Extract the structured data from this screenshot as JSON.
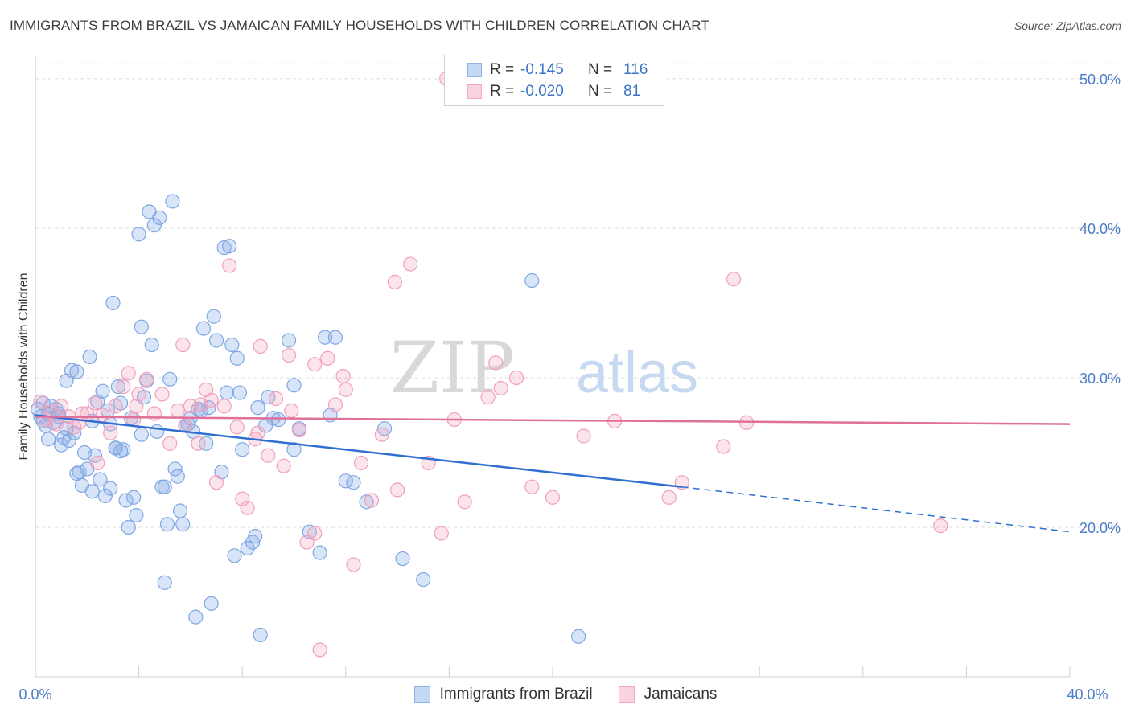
{
  "title": "IMMIGRANTS FROM BRAZIL VS JAMAICAN FAMILY HOUSEHOLDS WITH CHILDREN CORRELATION CHART",
  "source": "Source: ZipAtlas.com",
  "watermark": {
    "zip": "ZIP",
    "atlas": "atlas"
  },
  "legend_stats": [
    {
      "r_label": "R =",
      "r_value": "-0.145",
      "n_label": "N =",
      "n_value": "116",
      "color": "#8fb3e8"
    },
    {
      "r_label": "R =",
      "r_value": "-0.020",
      "n_label": "N =",
      "n_value": "81",
      "color": "#f3a7c0"
    }
  ],
  "chart_data": {
    "type": "scatter",
    "title": "IMMIGRANTS FROM BRAZIL VS JAMAICAN FAMILY HOUSEHOLDS WITH CHILDREN CORRELATION CHART",
    "xlabel": "",
    "ylabel": "Family Households with Children",
    "xlim": [
      0,
      40
    ],
    "ylim": [
      10,
      51.5
    ],
    "x_tick_labels": [
      "0.0%",
      "40.0%"
    ],
    "y_ticks": [
      20,
      30,
      40,
      50
    ],
    "y_tick_labels": [
      "20.0%",
      "30.0%",
      "40.0%",
      "50.0%"
    ],
    "grid": "horizontal dashed",
    "legend_position": "bottom",
    "series": [
      {
        "name": "Immigrants from Brazil",
        "color": "#8fb3e8",
        "trend": {
          "x0": 0,
          "y0": 27.5,
          "x1": 25,
          "y1": 22.7,
          "dash_to_x": 40,
          "dash_to_y": 19.7,
          "color": "#2e6fd1"
        },
        "points": [
          [
            0.1,
            27.9
          ],
          [
            0.2,
            27.4
          ],
          [
            0.3,
            28.3
          ],
          [
            0.3,
            27.1
          ],
          [
            0.4,
            26.8
          ],
          [
            0.5,
            27.6
          ],
          [
            0.6,
            28.1
          ],
          [
            0.7,
            27.0
          ],
          [
            0.8,
            27.9
          ],
          [
            0.9,
            27.4
          ],
          [
            1.0,
            25.5
          ],
          [
            1.1,
            26.0
          ],
          [
            1.2,
            29.8
          ],
          [
            1.3,
            25.8
          ],
          [
            1.4,
            30.5
          ],
          [
            1.5,
            26.3
          ],
          [
            1.6,
            30.4
          ],
          [
            1.7,
            23.7
          ],
          [
            1.8,
            22.8
          ],
          [
            1.9,
            25.0
          ],
          [
            2.0,
            23.9
          ],
          [
            2.1,
            31.4
          ],
          [
            2.2,
            27.1
          ],
          [
            2.3,
            24.8
          ],
          [
            2.4,
            28.4
          ],
          [
            2.5,
            23.2
          ],
          [
            2.6,
            29.1
          ],
          [
            2.7,
            22.1
          ],
          [
            2.8,
            27.8
          ],
          [
            2.9,
            22.6
          ],
          [
            3.0,
            35.0
          ],
          [
            3.1,
            25.3
          ],
          [
            3.2,
            29.4
          ],
          [
            3.3,
            28.3
          ],
          [
            3.4,
            25.2
          ],
          [
            3.5,
            21.8
          ],
          [
            3.6,
            20.0
          ],
          [
            3.7,
            27.3
          ],
          [
            3.8,
            22.0
          ],
          [
            3.9,
            20.8
          ],
          [
            4.0,
            39.6
          ],
          [
            4.1,
            33.4
          ],
          [
            4.2,
            28.7
          ],
          [
            4.3,
            29.8
          ],
          [
            4.4,
            41.1
          ],
          [
            4.5,
            32.2
          ],
          [
            4.6,
            40.2
          ],
          [
            4.8,
            40.7
          ],
          [
            4.9,
            22.7
          ],
          [
            5.0,
            16.3
          ],
          [
            5.1,
            20.2
          ],
          [
            5.2,
            29.9
          ],
          [
            5.3,
            41.8
          ],
          [
            5.4,
            23.9
          ],
          [
            5.5,
            23.4
          ],
          [
            5.6,
            21.1
          ],
          [
            5.7,
            20.2
          ],
          [
            5.8,
            26.8
          ],
          [
            6.0,
            27.3
          ],
          [
            6.1,
            26.4
          ],
          [
            6.2,
            14.0
          ],
          [
            6.3,
            27.9
          ],
          [
            6.5,
            33.3
          ],
          [
            6.7,
            28.0
          ],
          [
            6.8,
            14.9
          ],
          [
            6.9,
            34.1
          ],
          [
            7.0,
            32.5
          ],
          [
            7.2,
            23.7
          ],
          [
            7.3,
            38.7
          ],
          [
            7.5,
            38.8
          ],
          [
            7.6,
            32.2
          ],
          [
            7.7,
            18.1
          ],
          [
            7.8,
            31.3
          ],
          [
            7.9,
            29.0
          ],
          [
            8.0,
            25.2
          ],
          [
            8.2,
            18.6
          ],
          [
            8.4,
            19.0
          ],
          [
            8.5,
            19.4
          ],
          [
            8.6,
            28.0
          ],
          [
            8.7,
            12.8
          ],
          [
            9.0,
            28.7
          ],
          [
            9.2,
            27.3
          ],
          [
            9.8,
            32.5
          ],
          [
            10.0,
            25.2
          ],
          [
            10.2,
            26.6
          ],
          [
            11.2,
            32.7
          ],
          [
            11.6,
            32.7
          ],
          [
            11.0,
            18.3
          ],
          [
            12.3,
            23.0
          ],
          [
            12.8,
            21.7
          ],
          [
            13.5,
            26.6
          ],
          [
            14.2,
            17.9
          ],
          [
            15.0,
            16.5
          ],
          [
            19.2,
            36.5
          ],
          [
            21.0,
            12.7
          ],
          [
            10.6,
            19.7
          ],
          [
            11.4,
            27.5
          ],
          [
            9.4,
            27.2
          ],
          [
            8.9,
            26.8
          ],
          [
            6.4,
            27.8
          ],
          [
            5.9,
            26.9
          ],
          [
            4.7,
            26.4
          ],
          [
            3.3,
            25.1
          ],
          [
            2.9,
            26.9
          ],
          [
            1.2,
            26.6
          ],
          [
            0.5,
            25.9
          ],
          [
            0.9,
            27.6
          ],
          [
            1.6,
            23.6
          ],
          [
            2.2,
            22.4
          ],
          [
            3.1,
            25.3
          ],
          [
            4.1,
            26.2
          ],
          [
            5.0,
            22.7
          ],
          [
            6.6,
            25.6
          ],
          [
            7.4,
            29.0
          ],
          [
            10.0,
            29.5
          ],
          [
            12.0,
            23.1
          ]
        ]
      },
      {
        "name": "Jamaicans",
        "color": "#f3a7c0",
        "trend": {
          "x0": 0,
          "y0": 27.4,
          "x1": 40,
          "y1": 26.9,
          "color": "#e0709a"
        },
        "points": [
          [
            0.2,
            28.4
          ],
          [
            0.4,
            27.2
          ],
          [
            0.6,
            27.7
          ],
          [
            0.8,
            26.9
          ],
          [
            1.0,
            28.1
          ],
          [
            1.3,
            27.4
          ],
          [
            1.5,
            26.7
          ],
          [
            1.7,
            27.0
          ],
          [
            2.0,
            27.6
          ],
          [
            2.3,
            28.3
          ],
          [
            2.6,
            27.5
          ],
          [
            2.9,
            26.3
          ],
          [
            3.1,
            28.1
          ],
          [
            3.4,
            29.4
          ],
          [
            3.6,
            30.3
          ],
          [
            3.8,
            27.2
          ],
          [
            4.0,
            28.9
          ],
          [
            4.3,
            29.9
          ],
          [
            4.6,
            27.6
          ],
          [
            4.9,
            28.9
          ],
          [
            5.2,
            25.6
          ],
          [
            5.5,
            27.8
          ],
          [
            5.8,
            26.8
          ],
          [
            6.0,
            28.1
          ],
          [
            6.3,
            25.6
          ],
          [
            6.6,
            29.2
          ],
          [
            6.8,
            28.5
          ],
          [
            7.0,
            23.0
          ],
          [
            7.3,
            28.1
          ],
          [
            7.5,
            37.5
          ],
          [
            7.8,
            26.7
          ],
          [
            8.0,
            21.9
          ],
          [
            8.2,
            21.3
          ],
          [
            8.5,
            25.9
          ],
          [
            8.7,
            32.1
          ],
          [
            9.0,
            24.8
          ],
          [
            9.3,
            28.6
          ],
          [
            9.6,
            24.1
          ],
          [
            9.9,
            27.8
          ],
          [
            10.2,
            26.5
          ],
          [
            10.5,
            19.0
          ],
          [
            10.8,
            19.6
          ],
          [
            11.0,
            11.8
          ],
          [
            11.3,
            31.3
          ],
          [
            11.6,
            28.2
          ],
          [
            12.0,
            29.2
          ],
          [
            12.3,
            17.5
          ],
          [
            12.6,
            24.3
          ],
          [
            13.0,
            21.8
          ],
          [
            13.4,
            26.2
          ],
          [
            14.0,
            22.5
          ],
          [
            14.5,
            37.6
          ],
          [
            15.2,
            24.3
          ],
          [
            15.7,
            19.6
          ],
          [
            16.2,
            27.2
          ],
          [
            16.6,
            21.7
          ],
          [
            17.5,
            28.7
          ],
          [
            18.0,
            29.3
          ],
          [
            18.6,
            30.0
          ],
          [
            19.2,
            22.7
          ],
          [
            20.0,
            22.0
          ],
          [
            21.2,
            26.1
          ],
          [
            22.4,
            27.1
          ],
          [
            24.5,
            22.0
          ],
          [
            26.6,
            25.4
          ],
          [
            27.5,
            27.0
          ],
          [
            35.0,
            20.1
          ],
          [
            27.0,
            36.6
          ],
          [
            8.6,
            26.3
          ],
          [
            9.8,
            31.5
          ],
          [
            10.8,
            30.9
          ],
          [
            11.9,
            30.1
          ],
          [
            13.9,
            36.4
          ],
          [
            17.8,
            31.0
          ],
          [
            5.7,
            32.2
          ],
          [
            3.9,
            28.1
          ],
          [
            2.4,
            24.3
          ],
          [
            1.8,
            27.6
          ],
          [
            6.4,
            28.2
          ],
          [
            15.9,
            50.0
          ],
          [
            25.0,
            23.0
          ]
        ]
      }
    ]
  }
}
